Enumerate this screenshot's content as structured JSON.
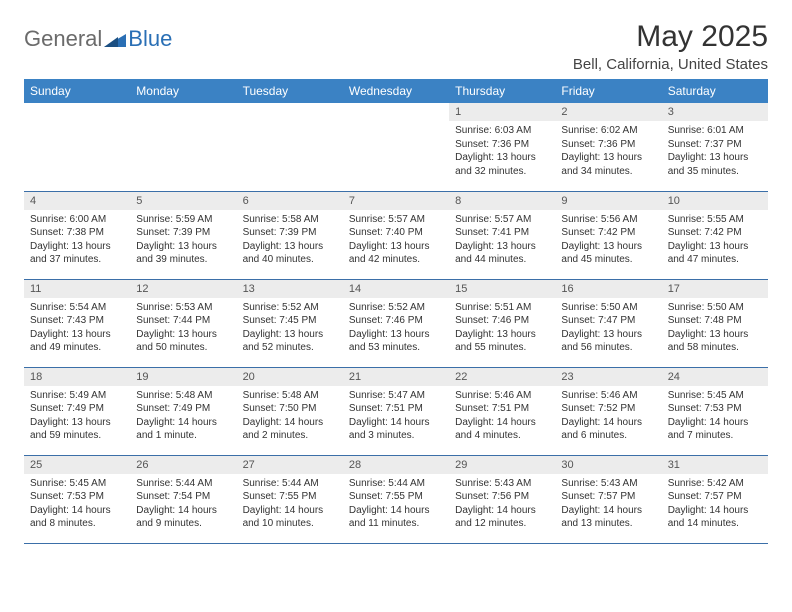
{
  "logo": {
    "general": "General",
    "blue": "Blue"
  },
  "title": "May 2025",
  "location": "Bell, California, United States",
  "colors": {
    "header_bg": "#3b82c4",
    "header_text": "#ffffff",
    "daynum_bg": "#ececec",
    "cell_border": "#3b6fa8",
    "logo_gray": "#6b6b6b",
    "logo_blue": "#2a6fb5"
  },
  "day_names": [
    "Sunday",
    "Monday",
    "Tuesday",
    "Wednesday",
    "Thursday",
    "Friday",
    "Saturday"
  ],
  "weeks": [
    [
      {
        "n": "",
        "sr": "",
        "ss": "",
        "dl": ""
      },
      {
        "n": "",
        "sr": "",
        "ss": "",
        "dl": ""
      },
      {
        "n": "",
        "sr": "",
        "ss": "",
        "dl": ""
      },
      {
        "n": "",
        "sr": "",
        "ss": "",
        "dl": ""
      },
      {
        "n": "1",
        "sr": "Sunrise: 6:03 AM",
        "ss": "Sunset: 7:36 PM",
        "dl": "Daylight: 13 hours and 32 minutes."
      },
      {
        "n": "2",
        "sr": "Sunrise: 6:02 AM",
        "ss": "Sunset: 7:36 PM",
        "dl": "Daylight: 13 hours and 34 minutes."
      },
      {
        "n": "3",
        "sr": "Sunrise: 6:01 AM",
        "ss": "Sunset: 7:37 PM",
        "dl": "Daylight: 13 hours and 35 minutes."
      }
    ],
    [
      {
        "n": "4",
        "sr": "Sunrise: 6:00 AM",
        "ss": "Sunset: 7:38 PM",
        "dl": "Daylight: 13 hours and 37 minutes."
      },
      {
        "n": "5",
        "sr": "Sunrise: 5:59 AM",
        "ss": "Sunset: 7:39 PM",
        "dl": "Daylight: 13 hours and 39 minutes."
      },
      {
        "n": "6",
        "sr": "Sunrise: 5:58 AM",
        "ss": "Sunset: 7:39 PM",
        "dl": "Daylight: 13 hours and 40 minutes."
      },
      {
        "n": "7",
        "sr": "Sunrise: 5:57 AM",
        "ss": "Sunset: 7:40 PM",
        "dl": "Daylight: 13 hours and 42 minutes."
      },
      {
        "n": "8",
        "sr": "Sunrise: 5:57 AM",
        "ss": "Sunset: 7:41 PM",
        "dl": "Daylight: 13 hours and 44 minutes."
      },
      {
        "n": "9",
        "sr": "Sunrise: 5:56 AM",
        "ss": "Sunset: 7:42 PM",
        "dl": "Daylight: 13 hours and 45 minutes."
      },
      {
        "n": "10",
        "sr": "Sunrise: 5:55 AM",
        "ss": "Sunset: 7:42 PM",
        "dl": "Daylight: 13 hours and 47 minutes."
      }
    ],
    [
      {
        "n": "11",
        "sr": "Sunrise: 5:54 AM",
        "ss": "Sunset: 7:43 PM",
        "dl": "Daylight: 13 hours and 49 minutes."
      },
      {
        "n": "12",
        "sr": "Sunrise: 5:53 AM",
        "ss": "Sunset: 7:44 PM",
        "dl": "Daylight: 13 hours and 50 minutes."
      },
      {
        "n": "13",
        "sr": "Sunrise: 5:52 AM",
        "ss": "Sunset: 7:45 PM",
        "dl": "Daylight: 13 hours and 52 minutes."
      },
      {
        "n": "14",
        "sr": "Sunrise: 5:52 AM",
        "ss": "Sunset: 7:46 PM",
        "dl": "Daylight: 13 hours and 53 minutes."
      },
      {
        "n": "15",
        "sr": "Sunrise: 5:51 AM",
        "ss": "Sunset: 7:46 PM",
        "dl": "Daylight: 13 hours and 55 minutes."
      },
      {
        "n": "16",
        "sr": "Sunrise: 5:50 AM",
        "ss": "Sunset: 7:47 PM",
        "dl": "Daylight: 13 hours and 56 minutes."
      },
      {
        "n": "17",
        "sr": "Sunrise: 5:50 AM",
        "ss": "Sunset: 7:48 PM",
        "dl": "Daylight: 13 hours and 58 minutes."
      }
    ],
    [
      {
        "n": "18",
        "sr": "Sunrise: 5:49 AM",
        "ss": "Sunset: 7:49 PM",
        "dl": "Daylight: 13 hours and 59 minutes."
      },
      {
        "n": "19",
        "sr": "Sunrise: 5:48 AM",
        "ss": "Sunset: 7:49 PM",
        "dl": "Daylight: 14 hours and 1 minute."
      },
      {
        "n": "20",
        "sr": "Sunrise: 5:48 AM",
        "ss": "Sunset: 7:50 PM",
        "dl": "Daylight: 14 hours and 2 minutes."
      },
      {
        "n": "21",
        "sr": "Sunrise: 5:47 AM",
        "ss": "Sunset: 7:51 PM",
        "dl": "Daylight: 14 hours and 3 minutes."
      },
      {
        "n": "22",
        "sr": "Sunrise: 5:46 AM",
        "ss": "Sunset: 7:51 PM",
        "dl": "Daylight: 14 hours and 4 minutes."
      },
      {
        "n": "23",
        "sr": "Sunrise: 5:46 AM",
        "ss": "Sunset: 7:52 PM",
        "dl": "Daylight: 14 hours and 6 minutes."
      },
      {
        "n": "24",
        "sr": "Sunrise: 5:45 AM",
        "ss": "Sunset: 7:53 PM",
        "dl": "Daylight: 14 hours and 7 minutes."
      }
    ],
    [
      {
        "n": "25",
        "sr": "Sunrise: 5:45 AM",
        "ss": "Sunset: 7:53 PM",
        "dl": "Daylight: 14 hours and 8 minutes."
      },
      {
        "n": "26",
        "sr": "Sunrise: 5:44 AM",
        "ss": "Sunset: 7:54 PM",
        "dl": "Daylight: 14 hours and 9 minutes."
      },
      {
        "n": "27",
        "sr": "Sunrise: 5:44 AM",
        "ss": "Sunset: 7:55 PM",
        "dl": "Daylight: 14 hours and 10 minutes."
      },
      {
        "n": "28",
        "sr": "Sunrise: 5:44 AM",
        "ss": "Sunset: 7:55 PM",
        "dl": "Daylight: 14 hours and 11 minutes."
      },
      {
        "n": "29",
        "sr": "Sunrise: 5:43 AM",
        "ss": "Sunset: 7:56 PM",
        "dl": "Daylight: 14 hours and 12 minutes."
      },
      {
        "n": "30",
        "sr": "Sunrise: 5:43 AM",
        "ss": "Sunset: 7:57 PM",
        "dl": "Daylight: 14 hours and 13 minutes."
      },
      {
        "n": "31",
        "sr": "Sunrise: 5:42 AM",
        "ss": "Sunset: 7:57 PM",
        "dl": "Daylight: 14 hours and 14 minutes."
      }
    ]
  ]
}
